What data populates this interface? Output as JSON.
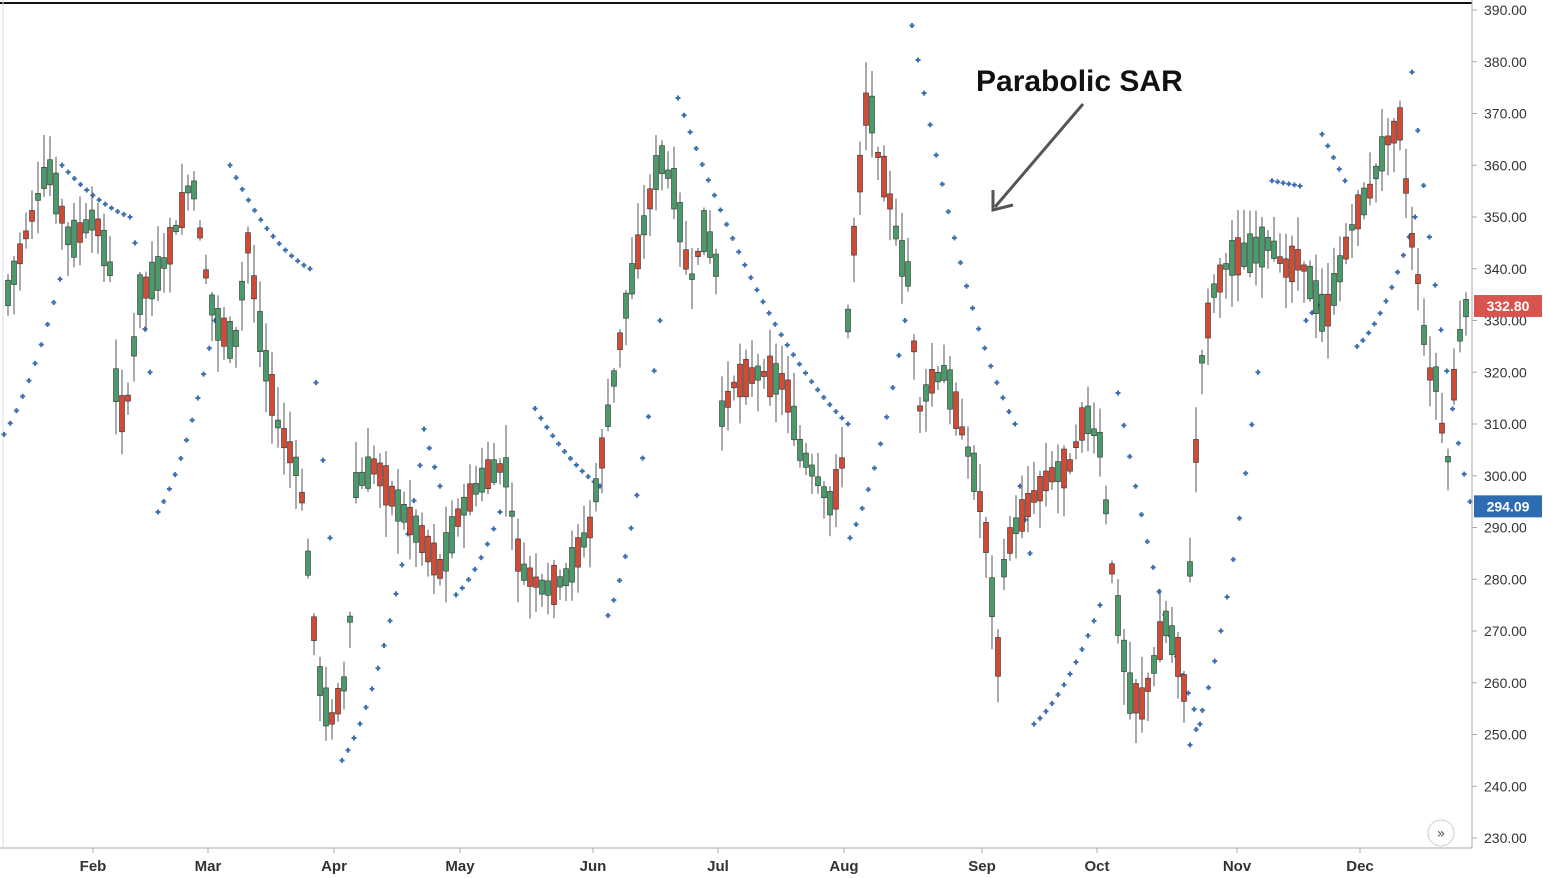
{
  "chart_data": {
    "type": "candlestick",
    "ylim": [
      230,
      390
    ],
    "y_ticks": [
      "390.00",
      "380.00",
      "370.00",
      "360.00",
      "350.00",
      "340.00",
      "330.00",
      "320.00",
      "310.00",
      "300.00",
      "290.00",
      "280.00",
      "270.00",
      "260.00",
      "250.00",
      "240.00",
      "230.00"
    ],
    "months": [
      "Feb",
      "Mar",
      "Apr",
      "May",
      "Jun",
      "Jul",
      "Aug",
      "Sep",
      "Oct",
      "Nov",
      "Dec"
    ],
    "annotation": "Parabolic SAR",
    "price_badges": [
      {
        "label": "332.80",
        "value": 332.8,
        "color": "#d9534f"
      },
      {
        "label": "294.09",
        "value": 294.09,
        "color": "#2d6cb0"
      }
    ],
    "up_color": "#4a9a6a",
    "down_color": "#d04a36",
    "sar_color": "#3d6fb0",
    "bars_per_month": 21,
    "candles": [
      [
        332,
        327,
        338,
        335
      ],
      [
        335,
        330,
        341,
        340
      ],
      [
        340,
        335,
        344,
        343
      ],
      [
        343,
        339,
        348,
        347
      ],
      [
        347,
        342,
        352,
        350
      ],
      [
        350,
        345,
        354,
        352
      ],
      [
        352,
        350,
        362,
        358
      ],
      [
        358,
        345,
        361,
        348
      ],
      [
        348,
        340,
        352,
        343
      ],
      [
        343,
        338,
        347,
        339
      ],
      [
        339,
        336,
        343,
        340
      ],
      [
        340,
        336,
        344,
        341
      ],
      [
        341,
        338,
        352,
        350
      ],
      [
        350,
        346,
        356,
        354
      ],
      [
        354,
        346,
        357,
        348
      ],
      [
        348,
        342,
        352,
        345
      ],
      [
        345,
        338,
        350,
        339
      ],
      [
        339,
        328,
        342,
        330
      ],
      [
        330,
        316,
        337,
        320
      ],
      [
        320,
        305,
        322,
        311
      ],
      [
        311,
        302,
        315,
        310
      ]
    ]
  },
  "nav_button": "»"
}
